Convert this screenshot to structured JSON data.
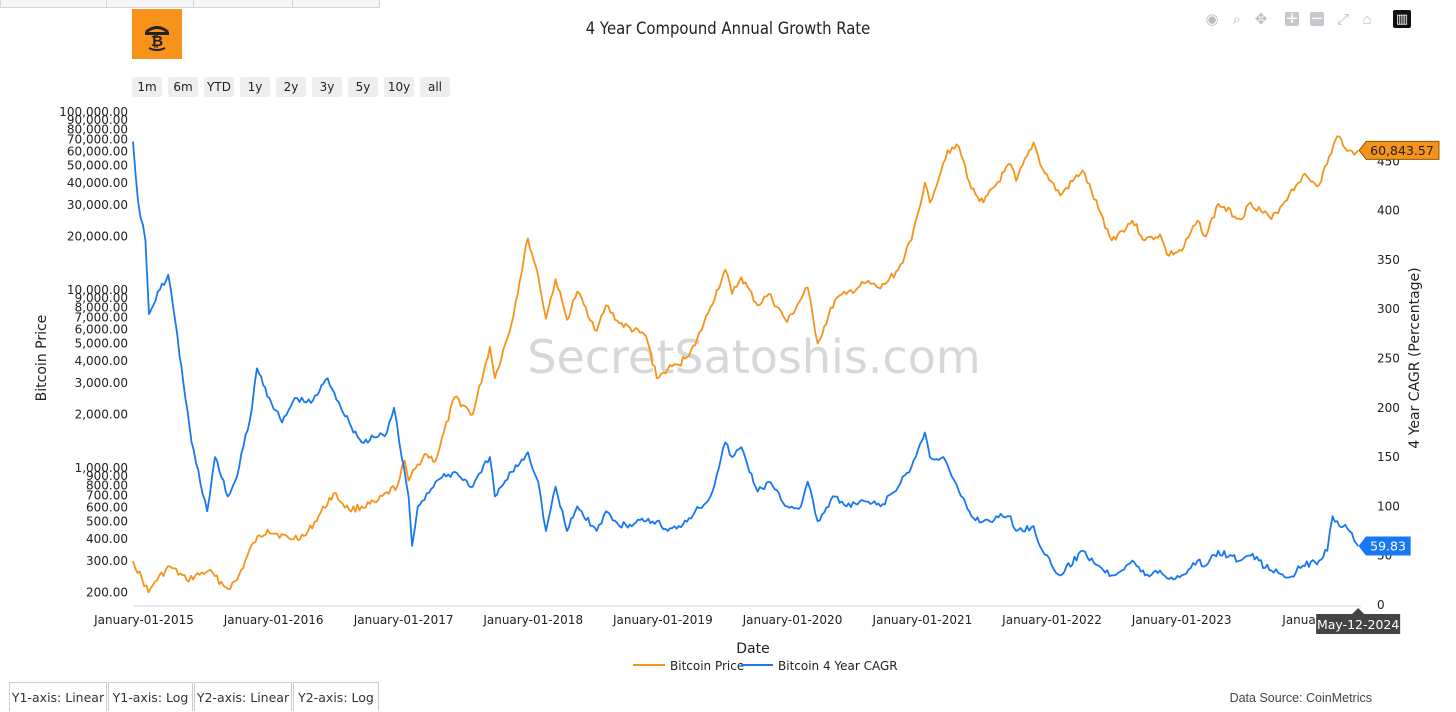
{
  "chart_title": "4 Year Compound Annual Growth Rate",
  "watermark": "SecretSatoshis.com",
  "brand_color": "#f7931a",
  "modebar": [
    {
      "name": "camera-icon",
      "glyph": "◉"
    },
    {
      "name": "zoom-icon",
      "glyph": "⌕"
    },
    {
      "name": "pan-icon",
      "glyph": "✥"
    },
    {
      "name": "zoom-in-icon",
      "glyph": "+"
    },
    {
      "name": "zoom-out-icon",
      "glyph": "−"
    },
    {
      "name": "autoscale-icon",
      "glyph": "⤢"
    },
    {
      "name": "home-icon",
      "glyph": "⌂"
    },
    {
      "name": "plotly-logo-icon",
      "glyph": "▥"
    }
  ],
  "range_buttons": [
    "1m",
    "6m",
    "YTD",
    "1y",
    "2y",
    "3y",
    "5y",
    "10y",
    "all"
  ],
  "axis_tabs": [
    "Y1-axis: Linear",
    "Y1-axis: Log",
    "Y2-axis: Linear",
    "Y2-axis: Log"
  ],
  "data_source": "Data Source: CoinMetrics",
  "chart_data": {
    "type": "line",
    "title": "4 Year Compound Annual Growth Rate",
    "xlabel": "Date",
    "ylabel": "Bitcoin Price",
    "y2label": "4 Year CAGR (Percentage)",
    "y_scale": "log",
    "ylim": [
      170,
      100000
    ],
    "y2lim": [
      0,
      500
    ],
    "xlim": [
      "2014-12-01",
      "2024-05-20"
    ],
    "y_ticks": [
      200,
      300,
      400,
      500,
      600,
      700,
      800,
      900,
      1000,
      2000,
      3000,
      4000,
      5000,
      6000,
      7000,
      8000,
      9000,
      10000,
      20000,
      30000,
      40000,
      50000,
      60000,
      70000,
      80000,
      90000,
      100000
    ],
    "y_tick_labels": [
      "200.00",
      "300.00",
      "400.00",
      "500.00",
      "600.00",
      "700.00",
      "800.00",
      "900.00",
      "1,000.00",
      "2,000.00",
      "3,000.00",
      "4,000.00",
      "5,000.00",
      "6,000.00",
      "7,000.00",
      "8,000.00",
      "9,000.00",
      "10,000.00",
      "20,000.00",
      "30,000.00",
      "40,000.00",
      "50,000.00",
      "60,000.00",
      "70,000.00",
      "80,000.00",
      "90,000.00",
      "100,000.00"
    ],
    "y2_ticks": [
      0,
      50,
      100,
      150,
      200,
      250,
      300,
      350,
      400,
      450
    ],
    "y2_tick_labels": [
      "0",
      "50",
      "100",
      "150",
      "200",
      "250",
      "300",
      "350",
      "400",
      "450"
    ],
    "x_ticks": [
      "2015-01-01",
      "2016-01-01",
      "2017-01-01",
      "2018-01-01",
      "2019-01-01",
      "2020-01-01",
      "2021-01-01",
      "2022-01-01",
      "2023-01-01",
      "2024-01-01"
    ],
    "x_tick_labels": [
      "January-01-2015",
      "January-01-2016",
      "January-01-2017",
      "January-01-2018",
      "January-01-2019",
      "January-01-2020",
      "January-01-2021",
      "January-01-2022",
      "January-01-2023",
      "January-C"
    ],
    "legend_position": "bottom-center",
    "grid": false,
    "series": [
      {
        "name": "Bitcoin Price",
        "axis": "y1",
        "color": "#f7931a",
        "last_value_label": "60,843.57",
        "points": [
          [
            "2014-12-01",
            300
          ],
          [
            "2015-01-14",
            200
          ],
          [
            "2015-02-01",
            230
          ],
          [
            "2015-03-15",
            280
          ],
          [
            "2015-05-01",
            235
          ],
          [
            "2015-07-01",
            265
          ],
          [
            "2015-08-25",
            210
          ],
          [
            "2015-09-20",
            235
          ],
          [
            "2015-11-05",
            380
          ],
          [
            "2015-12-15",
            450
          ],
          [
            "2016-02-15",
            400
          ],
          [
            "2016-04-01",
            420
          ],
          [
            "2016-06-18",
            720
          ],
          [
            "2016-08-01",
            580
          ],
          [
            "2016-10-15",
            640
          ],
          [
            "2016-12-15",
            800
          ],
          [
            "2017-01-04",
            1100
          ],
          [
            "2017-01-15",
            850
          ],
          [
            "2017-03-01",
            1200
          ],
          [
            "2017-04-01",
            1100
          ],
          [
            "2017-05-25",
            2500
          ],
          [
            "2017-07-15",
            2000
          ],
          [
            "2017-09-01",
            4800
          ],
          [
            "2017-09-15",
            3200
          ],
          [
            "2017-11-01",
            6500
          ],
          [
            "2017-12-17",
            19500
          ],
          [
            "2018-01-15",
            12000
          ],
          [
            "2018-02-06",
            6900
          ],
          [
            "2018-03-05",
            11500
          ],
          [
            "2018-04-06",
            6800
          ],
          [
            "2018-05-05",
            9800
          ],
          [
            "2018-06-29",
            5900
          ],
          [
            "2018-07-25",
            8200
          ],
          [
            "2018-09-01",
            6500
          ],
          [
            "2018-11-15",
            5500
          ],
          [
            "2018-12-15",
            3200
          ],
          [
            "2019-01-15",
            3600
          ],
          [
            "2019-02-15",
            3800
          ],
          [
            "2019-04-02",
            4900
          ],
          [
            "2019-05-15",
            8000
          ],
          [
            "2019-06-26",
            13000
          ],
          [
            "2019-07-15",
            9500
          ],
          [
            "2019-08-10",
            11800
          ],
          [
            "2019-09-25",
            8200
          ],
          [
            "2019-10-26",
            9500
          ],
          [
            "2019-12-17",
            6600
          ],
          [
            "2020-02-13",
            10300
          ],
          [
            "2020-03-12",
            5000
          ],
          [
            "2020-04-30",
            8800
          ],
          [
            "2020-06-01",
            9500
          ],
          [
            "2020-07-27",
            11000
          ],
          [
            "2020-09-05",
            10200
          ],
          [
            "2020-10-25",
            13000
          ],
          [
            "2020-12-01",
            19000
          ],
          [
            "2021-01-08",
            40000
          ],
          [
            "2021-01-22",
            31000
          ],
          [
            "2021-03-13",
            61000
          ],
          [
            "2021-04-14",
            63500
          ],
          [
            "2021-05-19",
            37000
          ],
          [
            "2021-06-22",
            31000
          ],
          [
            "2021-09-06",
            51000
          ],
          [
            "2021-09-22",
            41000
          ],
          [
            "2021-11-10",
            67500
          ],
          [
            "2021-12-05",
            48000
          ],
          [
            "2022-01-24",
            34000
          ],
          [
            "2022-03-28",
            47000
          ],
          [
            "2022-05-12",
            28500
          ],
          [
            "2022-06-18",
            19000
          ],
          [
            "2022-08-15",
            24500
          ],
          [
            "2022-09-20",
            19000
          ],
          [
            "2022-11-01",
            20500
          ],
          [
            "2022-11-21",
            15800
          ],
          [
            "2023-01-01",
            16600
          ],
          [
            "2023-02-15",
            24500
          ],
          [
            "2023-03-10",
            20000
          ],
          [
            "2023-04-14",
            30500
          ],
          [
            "2023-06-15",
            25000
          ],
          [
            "2023-07-14",
            31000
          ],
          [
            "2023-09-11",
            25000
          ],
          [
            "2023-10-31",
            34500
          ],
          [
            "2023-12-08",
            44000
          ],
          [
            "2024-01-23",
            39000
          ],
          [
            "2024-03-14",
            73000
          ],
          [
            "2024-04-17",
            61000
          ],
          [
            "2024-05-01",
            57500
          ],
          [
            "2024-05-12",
            60843.57
          ]
        ]
      },
      {
        "name": "Bitcoin 4 Year CAGR",
        "axis": "y2",
        "color": "#1877f2",
        "last_value_label": "59.83",
        "points": [
          [
            "2014-12-01",
            470
          ],
          [
            "2014-12-15",
            410
          ],
          [
            "2015-01-05",
            370
          ],
          [
            "2015-01-15",
            295
          ],
          [
            "2015-02-15",
            320
          ],
          [
            "2015-03-10",
            335
          ],
          [
            "2015-03-25",
            300
          ],
          [
            "2015-05-15",
            165
          ],
          [
            "2015-06-28",
            95
          ],
          [
            "2015-07-20",
            150
          ],
          [
            "2015-08-25",
            110
          ],
          [
            "2015-09-20",
            130
          ],
          [
            "2015-11-01",
            200
          ],
          [
            "2015-11-15",
            240
          ],
          [
            "2015-12-20",
            210
          ],
          [
            "2016-01-25",
            185
          ],
          [
            "2016-03-01",
            210
          ],
          [
            "2016-04-15",
            205
          ],
          [
            "2016-06-01",
            230
          ],
          [
            "2016-06-20",
            215
          ],
          [
            "2016-08-01",
            185
          ],
          [
            "2016-09-05",
            165
          ],
          [
            "2016-10-15",
            170
          ],
          [
            "2016-11-15",
            175
          ],
          [
            "2016-12-05",
            200
          ],
          [
            "2016-12-20",
            165
          ],
          [
            "2017-01-15",
            110
          ],
          [
            "2017-01-25",
            60
          ],
          [
            "2017-02-10",
            100
          ],
          [
            "2017-04-01",
            125
          ],
          [
            "2017-05-25",
            135
          ],
          [
            "2017-07-15",
            120
          ],
          [
            "2017-09-01",
            150
          ],
          [
            "2017-09-15",
            110
          ],
          [
            "2017-11-01",
            135
          ],
          [
            "2017-12-17",
            155
          ],
          [
            "2018-01-15",
            125
          ],
          [
            "2018-02-06",
            75
          ],
          [
            "2018-03-05",
            120
          ],
          [
            "2018-04-06",
            75
          ],
          [
            "2018-05-05",
            100
          ],
          [
            "2018-06-29",
            75
          ],
          [
            "2018-07-25",
            95
          ],
          [
            "2018-09-01",
            80
          ],
          [
            "2018-11-15",
            85
          ],
          [
            "2018-12-15",
            85
          ],
          [
            "2019-01-15",
            75
          ],
          [
            "2019-02-15",
            80
          ],
          [
            "2019-04-02",
            95
          ],
          [
            "2019-05-15",
            110
          ],
          [
            "2019-06-26",
            165
          ],
          [
            "2019-07-15",
            150
          ],
          [
            "2019-08-10",
            160
          ],
          [
            "2019-09-25",
            115
          ],
          [
            "2019-10-26",
            125
          ],
          [
            "2019-12-17",
            100
          ],
          [
            "2020-01-25",
            100
          ],
          [
            "2020-02-13",
            125
          ],
          [
            "2020-03-12",
            85
          ],
          [
            "2020-04-30",
            110
          ],
          [
            "2020-06-01",
            100
          ],
          [
            "2020-07-27",
            105
          ],
          [
            "2020-09-05",
            100
          ],
          [
            "2020-10-25",
            120
          ],
          [
            "2020-12-01",
            140
          ],
          [
            "2021-01-08",
            175
          ],
          [
            "2021-01-22",
            150
          ],
          [
            "2021-03-01",
            150
          ],
          [
            "2021-03-25",
            130
          ],
          [
            "2021-04-14",
            115
          ],
          [
            "2021-05-19",
            90
          ],
          [
            "2021-06-22",
            85
          ],
          [
            "2021-08-15",
            90
          ],
          [
            "2021-09-06",
            90
          ],
          [
            "2021-09-22",
            75
          ],
          [
            "2021-11-10",
            80
          ],
          [
            "2021-12-05",
            55
          ],
          [
            "2021-12-31",
            40
          ],
          [
            "2022-01-24",
            30
          ],
          [
            "2022-03-28",
            55
          ],
          [
            "2022-05-12",
            40
          ],
          [
            "2022-06-18",
            30
          ],
          [
            "2022-08-15",
            45
          ],
          [
            "2022-09-20",
            30
          ],
          [
            "2022-11-01",
            35
          ],
          [
            "2022-11-21",
            27
          ],
          [
            "2023-01-01",
            30
          ],
          [
            "2023-02-15",
            45
          ],
          [
            "2023-03-10",
            40
          ],
          [
            "2023-04-14",
            55
          ],
          [
            "2023-06-15",
            45
          ],
          [
            "2023-07-14",
            50
          ],
          [
            "2023-09-11",
            35
          ],
          [
            "2023-10-31",
            28
          ],
          [
            "2023-12-08",
            40
          ],
          [
            "2024-01-23",
            45
          ],
          [
            "2024-02-15",
            55
          ],
          [
            "2024-03-01",
            90
          ],
          [
            "2024-03-14",
            85
          ],
          [
            "2024-04-17",
            75
          ],
          [
            "2024-05-01",
            65
          ],
          [
            "2024-05-12",
            59.83
          ]
        ]
      }
    ],
    "hover_x_label": "May-12-2024"
  }
}
